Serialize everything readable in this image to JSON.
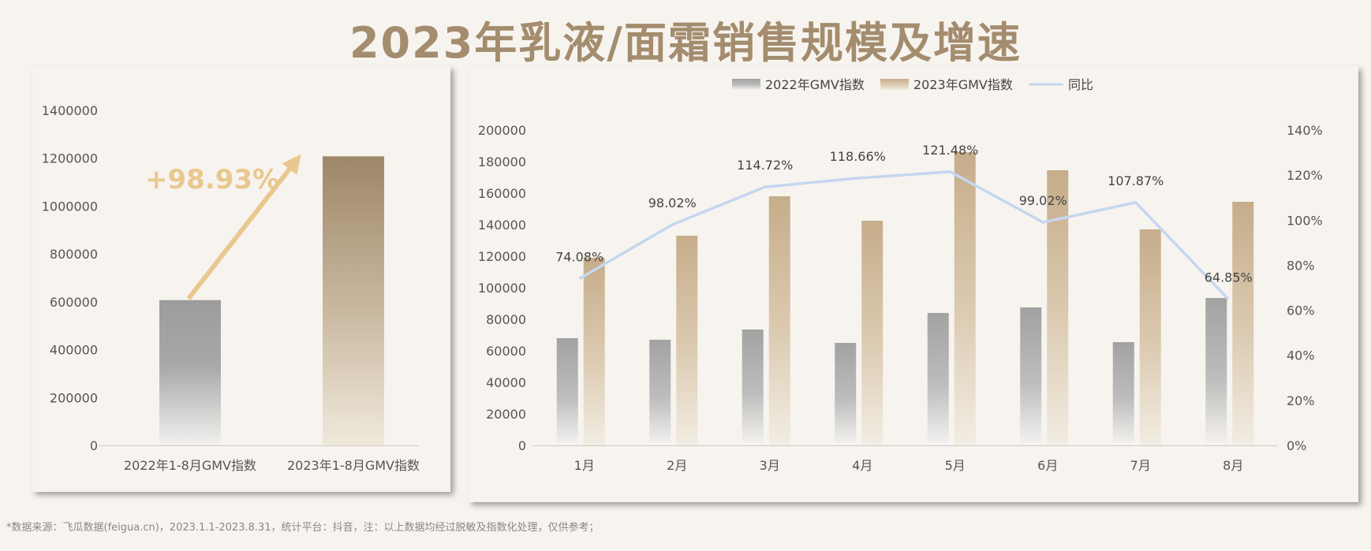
{
  "title": "2023年乳液/面霜销售规模及增速",
  "footnote": "*数据来源：飞瓜数据(feigua.cn)，2023.1.1-2023.8.31，统计平台：抖音，注：以上数据均经过脱敏及指数化处理，仅供参考；",
  "colors": {
    "title": "#a48c6e",
    "gray_bar": "#a6a6a6",
    "tan_bar": "#c9b08e",
    "tan_dark": "#9e8768",
    "line": "#c5d6f0",
    "growth_text": "#e8c88e",
    "axis_text": "#555555"
  },
  "chart_data": [
    {
      "type": "bar",
      "categories": [
        "2022年1-8月GMV指数",
        "2023年1-8月GMV指数"
      ],
      "values": [
        607000,
        1208000
      ],
      "ylim": [
        0,
        1400000
      ],
      "yticks": [
        "0",
        "200000",
        "400000",
        "600000",
        "800000",
        "1000000",
        "1200000",
        "1400000"
      ],
      "annotation": "+98.93%"
    },
    {
      "type": "bar",
      "categories": [
        "1月",
        "2月",
        "3月",
        "4月",
        "5月",
        "6月",
        "7月",
        "8月"
      ],
      "series": [
        {
          "name": "2022年GMV指数",
          "type": "bar",
          "values": [
            68000,
            67000,
            73500,
            65000,
            84000,
            87500,
            65500,
            93500
          ]
        },
        {
          "name": "2023年GMV指数",
          "type": "bar",
          "values": [
            119000,
            133000,
            158000,
            142500,
            186000,
            174500,
            137000,
            154500
          ]
        },
        {
          "name": "同比",
          "type": "line",
          "axis": "right",
          "values": [
            74.08,
            98.02,
            114.72,
            118.66,
            121.48,
            99.02,
            107.87,
            64.85
          ],
          "labels": [
            "74.08%",
            "98.02%",
            "114.72%",
            "118.66%",
            "121.48%",
            "99.02%",
            "107.87%",
            "64.85%"
          ]
        }
      ],
      "ylim": [
        0,
        200000
      ],
      "yticks": [
        "0",
        "20000",
        "40000",
        "60000",
        "80000",
        "100000",
        "120000",
        "140000",
        "160000",
        "180000",
        "200000"
      ],
      "y2lim": [
        0,
        140
      ],
      "y2ticks": [
        "0%",
        "20%",
        "40%",
        "60%",
        "80%",
        "100%",
        "120%",
        "140%"
      ],
      "legend_position": "top-center"
    }
  ]
}
